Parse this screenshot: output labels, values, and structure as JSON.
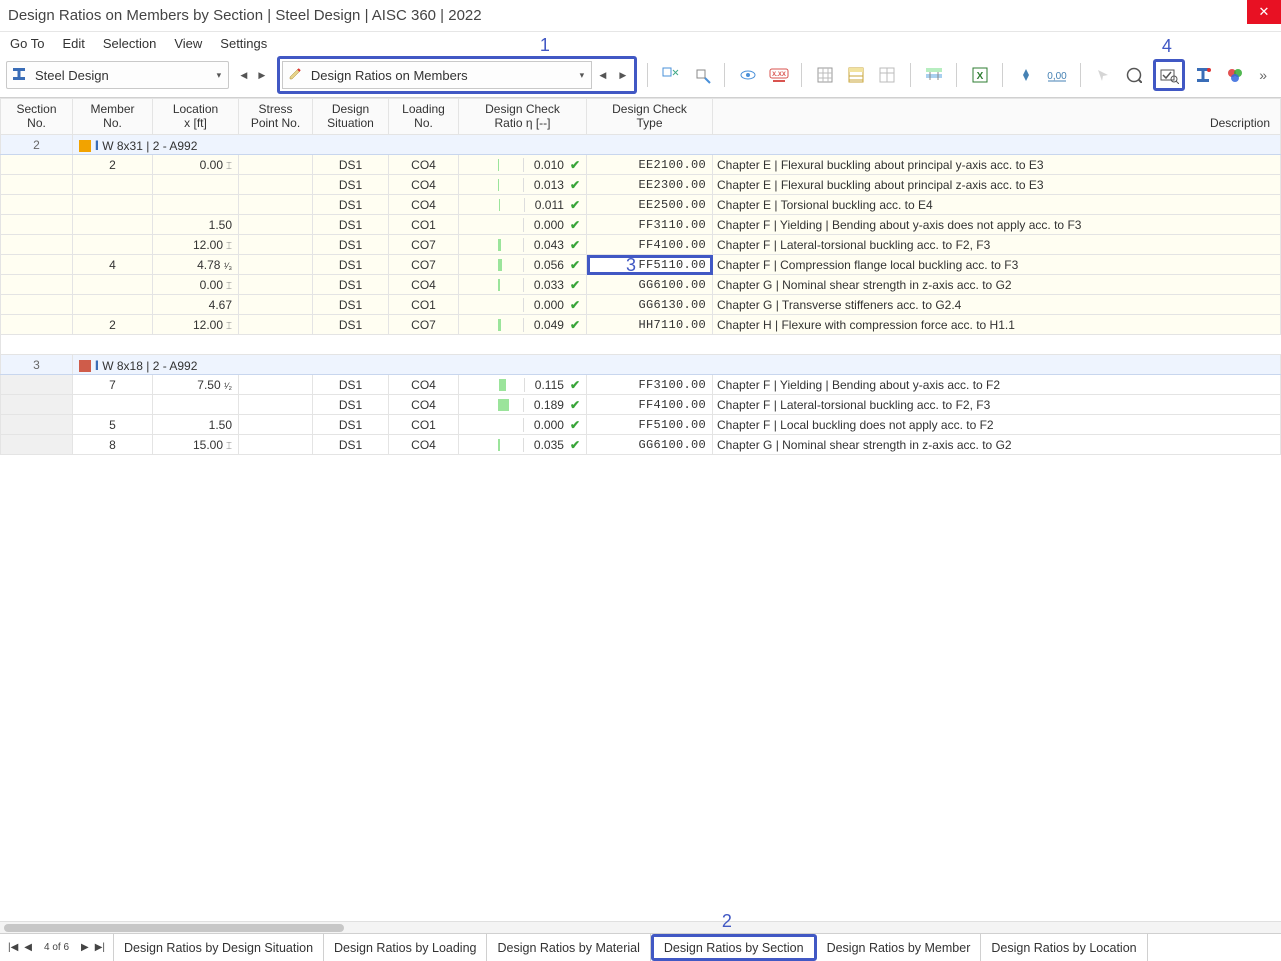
{
  "window": {
    "title": "Design Ratios on Members by Section | Steel Design | AISC 360 | 2022",
    "close": "✕"
  },
  "menu": {
    "go_to": "Go To",
    "edit": "Edit",
    "selection": "Selection",
    "view": "View",
    "settings": "Settings"
  },
  "toolbar": {
    "combo1": "Steel Design",
    "combo2": "Design Ratios on Members",
    "overflow": "»"
  },
  "annotations": {
    "a1": "1",
    "a2": "2",
    "a3": "3",
    "a4": "4"
  },
  "columns": {
    "section": {
      "l1": "Section",
      "l2": "No."
    },
    "member": {
      "l1": "Member",
      "l2": "No."
    },
    "location": {
      "l1": "Location",
      "l2": "x [ft]"
    },
    "stress": {
      "l1": "Stress",
      "l2": "Point No."
    },
    "ds": {
      "l1": "Design",
      "l2": "Situation"
    },
    "ld": {
      "l1": "Loading",
      "l2": "No."
    },
    "ratio": {
      "l1": "Design Check",
      "l2": "Ratio η [--]"
    },
    "dct": {
      "l1": "Design Check",
      "l2": "Type"
    },
    "desc": {
      "l1": "Description",
      "l2": ""
    }
  },
  "sections": [
    {
      "no": "2",
      "swatch": "#f2a300",
      "header": "W 8x31 | 2 - A992",
      "yellow": true,
      "rows": [
        {
          "member": "2",
          "loc": "0.00",
          "sym": "⌶",
          "ds": "DS1",
          "ld": "CO4",
          "ratio": "0.010",
          "barpct": 4,
          "dct": "EE2100.00",
          "desc": "Chapter E | Flexural buckling about principal y-axis acc. to E3"
        },
        {
          "member": "",
          "loc": "",
          "sym": "",
          "ds": "DS1",
          "ld": "CO4",
          "ratio": "0.013",
          "barpct": 5,
          "dct": "EE2300.00",
          "desc": "Chapter E | Flexural buckling about principal z-axis acc. to E3"
        },
        {
          "member": "",
          "loc": "",
          "sym": "",
          "ds": "DS1",
          "ld": "CO4",
          "ratio": "0.011",
          "barpct": 4,
          "dct": "EE2500.00",
          "desc": "Chapter E | Torsional buckling acc. to E4"
        },
        {
          "member": "",
          "loc": "1.50",
          "sym": "",
          "ds": "DS1",
          "ld": "CO1",
          "ratio": "0.000",
          "barpct": 0,
          "dct": "FF3110.00",
          "desc": "Chapter F | Yielding | Bending about y-axis does not apply acc. to F3"
        },
        {
          "member": "",
          "loc": "12.00",
          "sym": "⌶",
          "ds": "DS1",
          "ld": "CO7",
          "ratio": "0.043",
          "barpct": 12,
          "dct": "FF4100.00",
          "desc": "Chapter F | Lateral-torsional buckling acc. to F2, F3"
        },
        {
          "member": "4",
          "loc": "4.78",
          "frac": "¹⁄₃",
          "sym": "",
          "ds": "DS1",
          "ld": "CO7",
          "ratio": "0.056",
          "barpct": 15,
          "dct": "FF5110.00",
          "selected": true,
          "desc": "Chapter F | Compression flange local buckling acc. to F3"
        },
        {
          "member": "",
          "loc": "0.00",
          "sym": "⌶",
          "ds": "DS1",
          "ld": "CO4",
          "ratio": "0.033",
          "barpct": 10,
          "dct": "GG6100.00",
          "desc": "Chapter G | Nominal shear strength in z-axis acc. to G2"
        },
        {
          "member": "",
          "loc": "4.67",
          "sym": "",
          "ds": "DS1",
          "ld": "CO1",
          "ratio": "0.000",
          "barpct": 0,
          "dct": "GG6130.00",
          "desc": "Chapter G | Transverse stiffeners acc. to G2.4"
        },
        {
          "member": "2",
          "loc": "12.00",
          "sym": "⌶",
          "ds": "DS1",
          "ld": "CO7",
          "ratio": "0.049",
          "barpct": 13,
          "dct": "HH7110.00",
          "desc": "Chapter H | Flexure with compression force acc. to H1.1"
        }
      ]
    },
    {
      "no": "3",
      "swatch": "#cf5c4a",
      "header": "W 8x18 | 2 - A992",
      "yellow": false,
      "rows": [
        {
          "member": "7",
          "loc": "7.50",
          "frac": "¹⁄₂",
          "sym": "",
          "ds": "DS1",
          "ld": "CO4",
          "ratio": "0.115",
          "barpct": 28,
          "dct": "FF3100.00",
          "desc": "Chapter F | Yielding | Bending about y-axis acc. to F2"
        },
        {
          "member": "",
          "loc": "",
          "sym": "",
          "ds": "DS1",
          "ld": "CO4",
          "ratio": "0.189",
          "barpct": 45,
          "dct": "FF4100.00",
          "desc": "Chapter F | Lateral-torsional buckling acc. to F2, F3"
        },
        {
          "member": "5",
          "loc": "1.50",
          "sym": "",
          "ds": "DS1",
          "ld": "CO1",
          "ratio": "0.000",
          "barpct": 0,
          "dct": "FF5100.00",
          "desc": "Chapter F | Local buckling does not apply acc. to F2"
        },
        {
          "member": "8",
          "loc": "15.00",
          "sym": "⌶",
          "ds": "DS1",
          "ld": "CO4",
          "ratio": "0.035",
          "barpct": 10,
          "dct": "GG6100.00",
          "desc": "Chapter G | Nominal shear strength in z-axis acc. to G2"
        }
      ]
    }
  ],
  "pager": {
    "label": "4 of 6"
  },
  "tabs": {
    "t1": "Design Ratios by Design Situation",
    "t2": "Design Ratios by Loading",
    "t3": "Design Ratios by Material",
    "t4": "Design Ratios by Section",
    "t5": "Design Ratios by Member",
    "t6": "Design Ratios by Location"
  },
  "icons": {
    "steel1": {
      "type": "ibeam",
      "color": "#3a6db7"
    },
    "steel2": {
      "type": "ibeam",
      "color": "#3a6db7"
    },
    "zoom_sel": {
      "c1": "#4a8",
      "c2": "#888"
    },
    "prev_sel": {
      "c": "#4a90d9"
    },
    "eye": {
      "c": "#4a90d9"
    },
    "xxx": {
      "c": "#d9534f"
    },
    "table1": {
      "c": "#888"
    },
    "table2": {
      "c": "#e2c14a"
    },
    "table3": {
      "c": "#888"
    },
    "filter": {
      "c1": "#9be49b",
      "c2": "#4682b4"
    },
    "excel": {
      "c": "#2e7d32"
    },
    "pin": {
      "c": "#4682b4"
    },
    "decimal": {
      "c": "#4682b4"
    },
    "arrow": {
      "c": "#999"
    },
    "help": {
      "c": "#555"
    },
    "check_lens": {
      "c": "#555"
    },
    "ibeam_btn": {
      "c": "#3a6db7"
    },
    "rgb": {
      "r": "#d33",
      "g": "#3a3",
      "b": "#36d"
    }
  }
}
